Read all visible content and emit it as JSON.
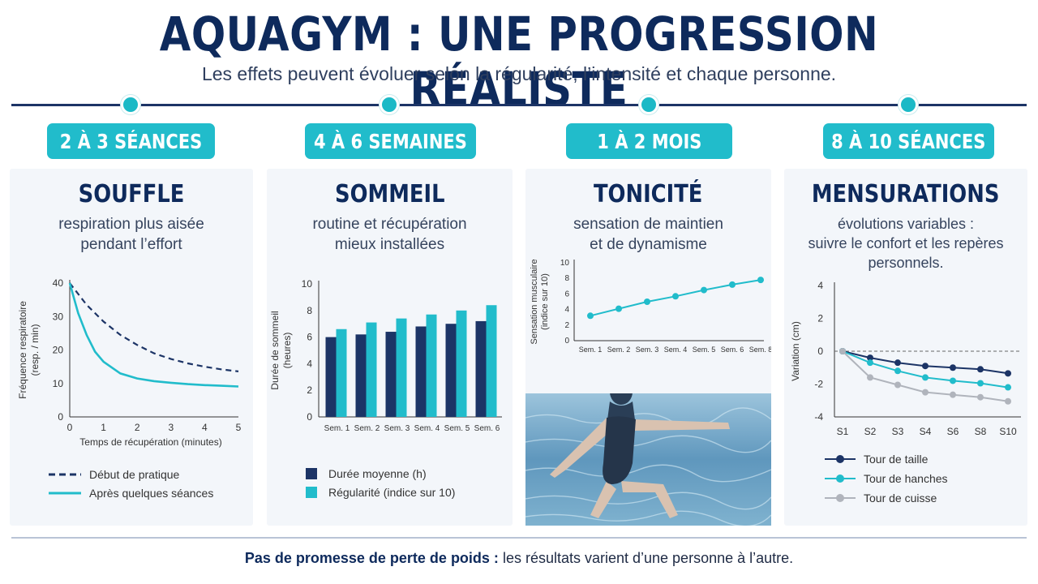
{
  "title": "AQUAGYM : UNE PROGRESSION RÉALISTE",
  "subtitle": "Les effets peuvent évoluer selon la régularité, l’intensité et chaque personne.",
  "colors": {
    "navy": "#1c3466",
    "teal": "#21bccb",
    "gray": "#b0b4bc"
  },
  "timeline": [
    {
      "badge": "2 À 3 SÉANCES",
      "title": "SOUFFLE",
      "subtitle": [
        "respiration plus aisée",
        "pendant l’effort"
      ]
    },
    {
      "badge": "4 À 6 SEMAINES",
      "title": "SOMMEIL",
      "subtitle": [
        "routine et récupération",
        "mieux installées"
      ]
    },
    {
      "badge": "1 À 2 MOIS",
      "title": "TONICITÉ",
      "subtitle": [
        "sensation de maintien",
        "et de dynamisme"
      ]
    },
    {
      "badge": "8 À 10 SÉANCES",
      "title": "MENSURATIONS",
      "subtitle": [
        "évolutions variables :",
        "suivre le confort et les repères",
        "personnels."
      ]
    }
  ],
  "footer": {
    "bold": "Pas de promesse de perte de poids :",
    "text": " les résultats varient d’une personne à l’autre."
  },
  "chart_data": [
    {
      "type": "line",
      "xlabel": "Temps de récupération (minutes)",
      "ylabel": [
        "Fréquence respiratoire",
        "(resp. / min)"
      ],
      "xlim": [
        0,
        5
      ],
      "ylim": [
        0,
        40
      ],
      "xticks": [
        0,
        1,
        2,
        3,
        4,
        5
      ],
      "yticks": [
        0,
        10,
        20,
        30,
        40
      ],
      "series": [
        {
          "name": "Début de pratique",
          "style": "dashed",
          "color": "#1c3466",
          "x": [
            0,
            0.5,
            1,
            1.5,
            2,
            2.5,
            3,
            3.5,
            4,
            4.5,
            5
          ],
          "y": [
            40,
            33.5,
            28.5,
            24.5,
            21.5,
            19,
            17.3,
            16,
            15,
            14.2,
            13.6
          ]
        },
        {
          "name": "Après quelques séances",
          "style": "solid",
          "color": "#21bccb",
          "x": [
            0,
            0.25,
            0.5,
            0.75,
            1,
            1.5,
            2,
            2.5,
            3,
            3.5,
            4,
            4.5,
            5
          ],
          "y": [
            40,
            31,
            24.5,
            19.5,
            16.5,
            13,
            11.5,
            10.7,
            10.2,
            9.8,
            9.5,
            9.3,
            9.1
          ]
        }
      ],
      "legend": "bottom"
    },
    {
      "type": "bar",
      "categories": [
        "Sem. 1",
        "Sem. 2",
        "Sem. 3",
        "Sem. 4",
        "Sem. 5",
        "Sem. 6"
      ],
      "ylabel": [
        "Durée de sommeil",
        "(heures)"
      ],
      "ylim": [
        0,
        10
      ],
      "yticks": [
        0,
        2,
        4,
        6,
        8,
        10
      ],
      "series": [
        {
          "name": "Durée moyenne (h)",
          "color": "#1c3466",
          "values": [
            6.0,
            6.2,
            6.4,
            6.8,
            7.0,
            7.2
          ]
        },
        {
          "name": "Régularité (indice sur 10)",
          "color": "#21bccb",
          "values": [
            6.6,
            7.1,
            7.4,
            7.7,
            8.0,
            8.4
          ]
        }
      ],
      "legend": "bottom"
    },
    {
      "type": "line",
      "categories": [
        "Sem. 1",
        "Sem. 2",
        "Sem. 3",
        "Sem. 4",
        "Sem. 5",
        "Sem. 6",
        "Sem. 8"
      ],
      "ylabel": [
        "Sensation musculaire",
        "(indice sur 10)"
      ],
      "ylim": [
        0,
        10
      ],
      "yticks": [
        0,
        2,
        4,
        6,
        8,
        10
      ],
      "series": [
        {
          "color": "#21bccb",
          "values": [
            3.2,
            4.1,
            5.0,
            5.7,
            6.5,
            7.2,
            7.8
          ]
        }
      ]
    },
    {
      "type": "line",
      "categories": [
        "S1",
        "S2",
        "S3",
        "S4",
        "S6",
        "S8",
        "S10"
      ],
      "ylabel": "Variation (cm)",
      "ylim": [
        -4,
        4
      ],
      "yticks": [
        -4,
        -2,
        0,
        2,
        4
      ],
      "series": [
        {
          "name": "Tour de taille",
          "color": "#1c3466",
          "values": [
            0,
            -0.4,
            -0.7,
            -0.9,
            -1.0,
            -1.1,
            -1.35
          ]
        },
        {
          "name": "Tour de hanches",
          "color": "#21bccb",
          "values": [
            0,
            -0.7,
            -1.2,
            -1.6,
            -1.8,
            -1.95,
            -2.2
          ]
        },
        {
          "name": "Tour de cuisse",
          "color": "#b0b4bc",
          "values": [
            0,
            -1.6,
            -2.05,
            -2.5,
            -2.65,
            -2.8,
            -3.05
          ]
        }
      ],
      "legend": "bottom"
    }
  ]
}
